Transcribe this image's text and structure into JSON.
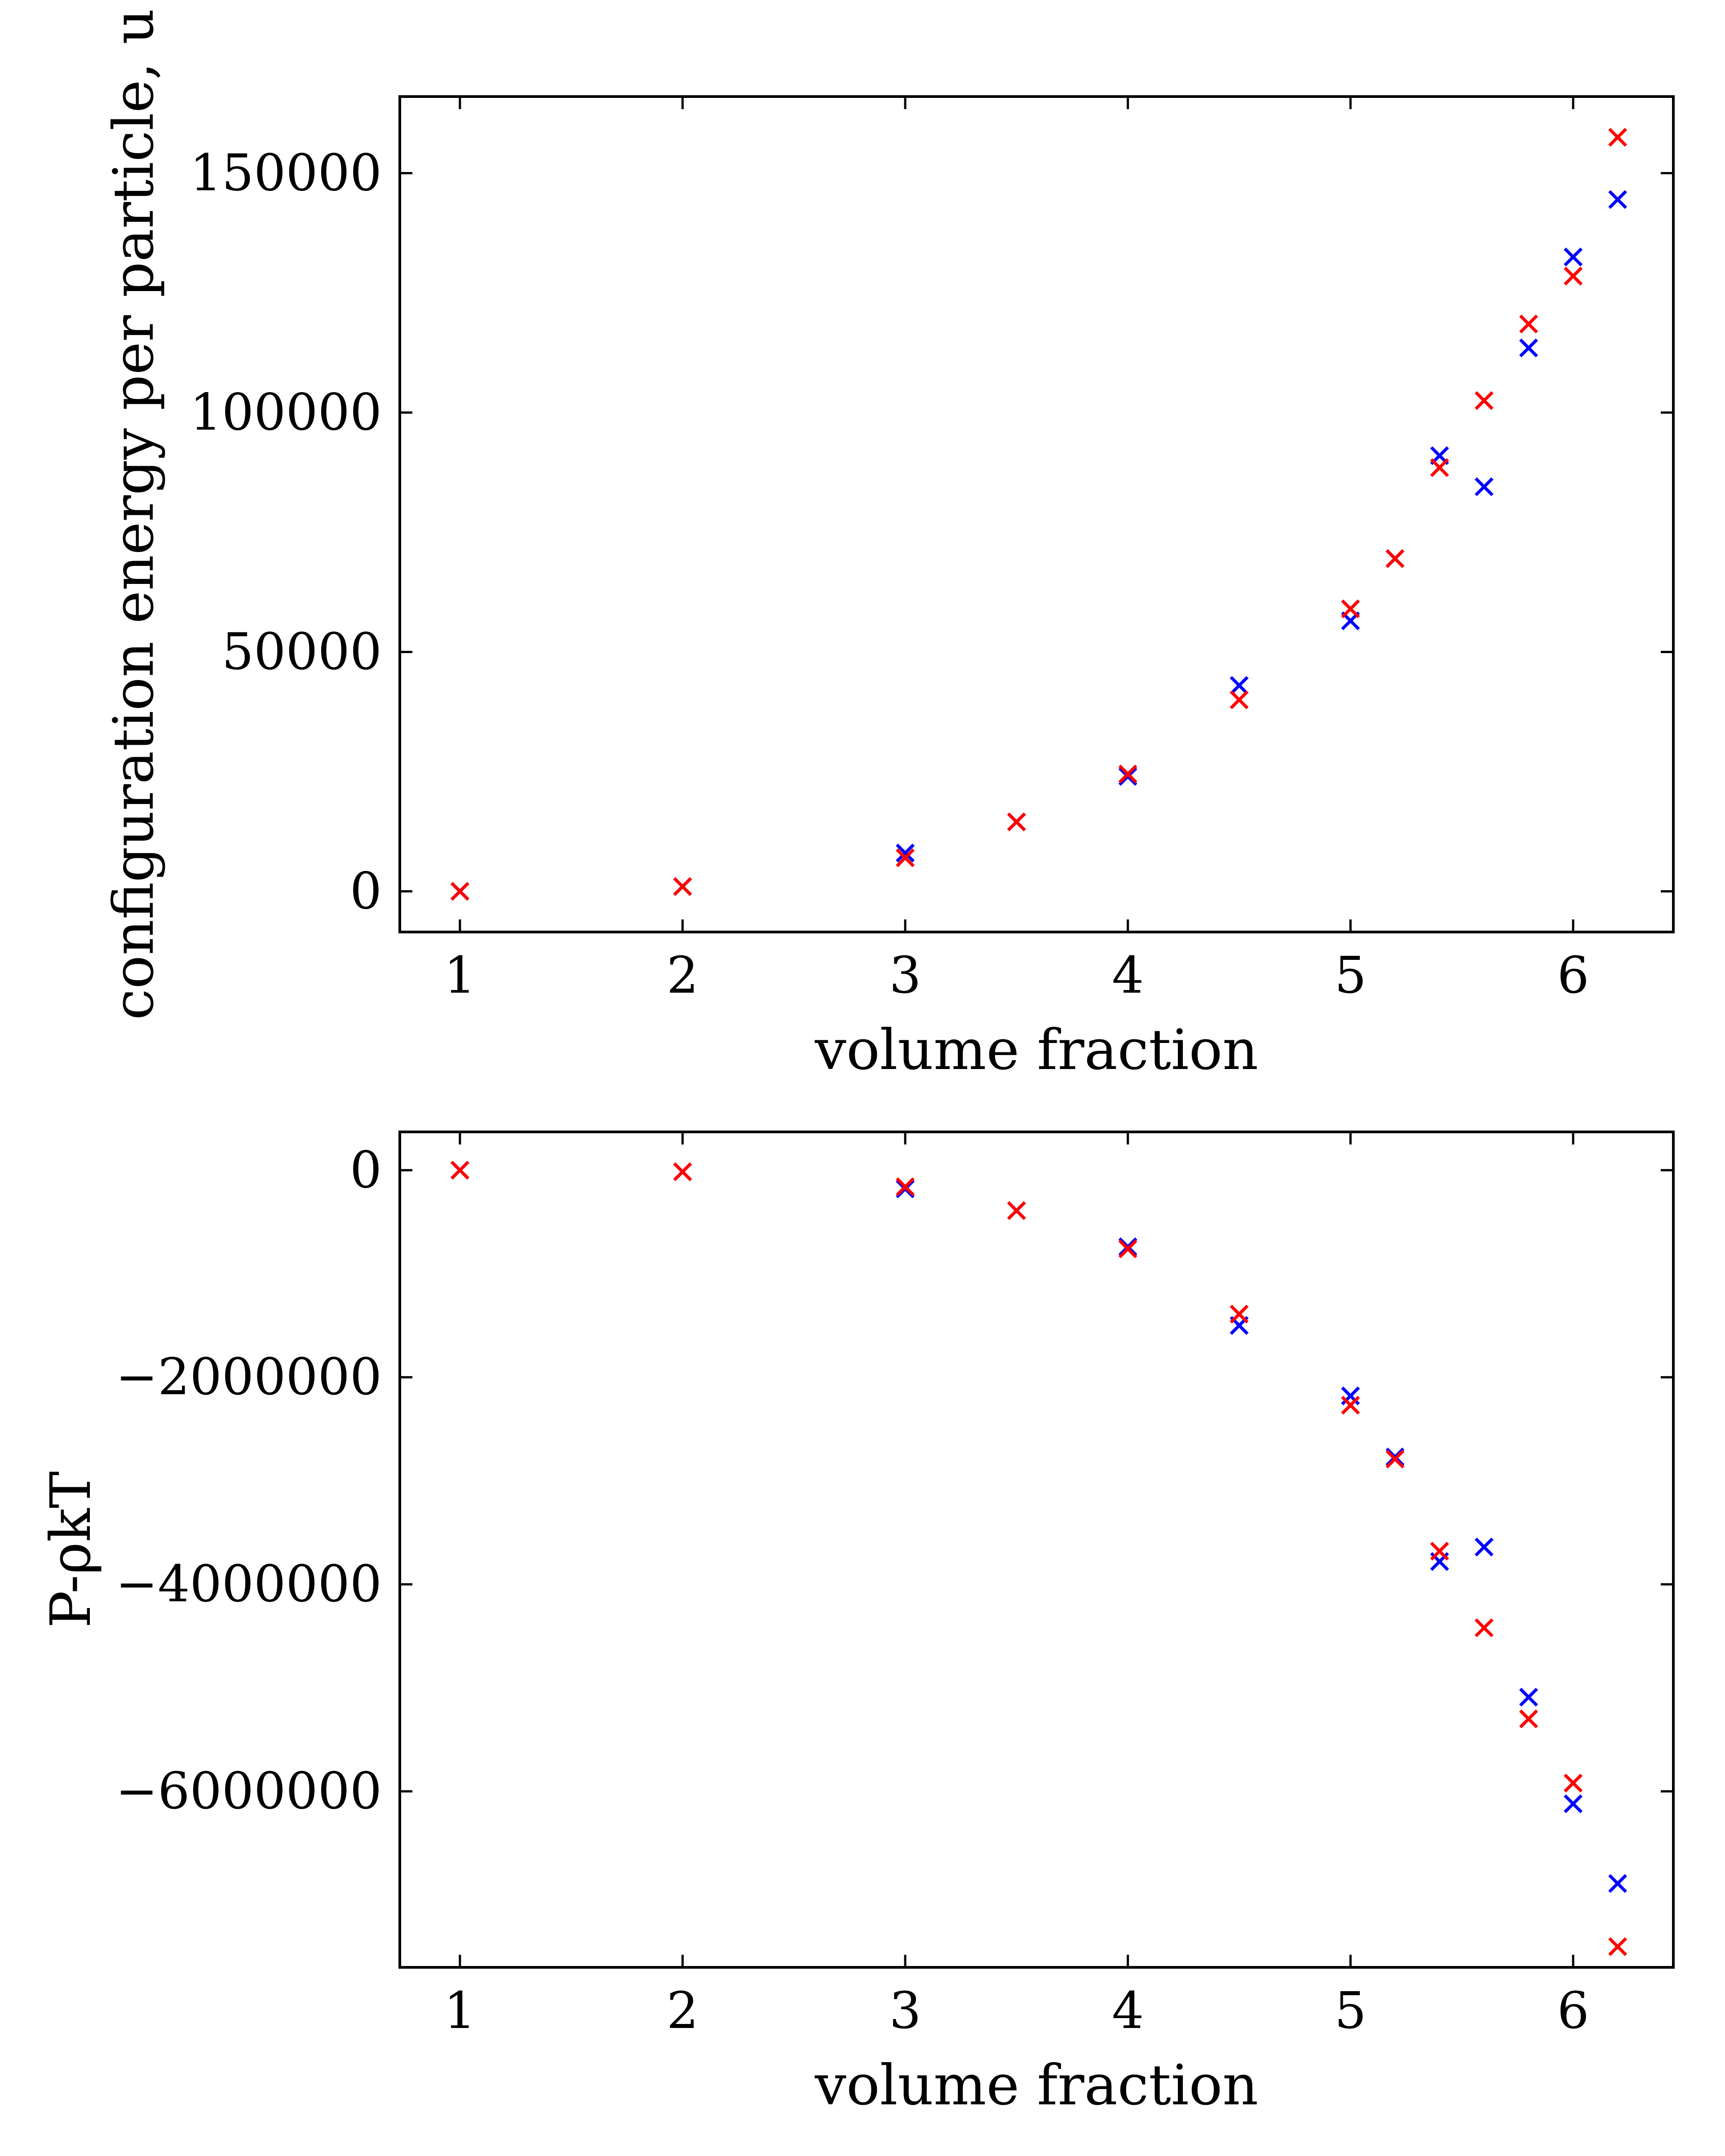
{
  "chart_data": [
    {
      "type": "scatter",
      "xlabel": "volume fraction",
      "ylabel": "configuration energy per particle, u",
      "xlim": [
        0.73,
        6.45
      ],
      "ylim": [
        -8500,
        166000
      ],
      "xticks": [
        1,
        2,
        3,
        4,
        5,
        6
      ],
      "yticks": [
        0,
        50000,
        100000,
        150000
      ],
      "ytick_labels": [
        "0",
        "50000",
        "100000",
        "150000"
      ],
      "grid": false,
      "legend": "none",
      "marker": "x",
      "series": [
        {
          "color": "#0000ff",
          "points": [
            [
              1,
              0
            ],
            [
              2,
              1000
            ],
            [
              3,
              8000
            ],
            [
              3.5,
              14500
            ],
            [
              4,
              24000
            ],
            [
              4.5,
              43000
            ],
            [
              5,
              56500
            ],
            [
              5.2,
              69500
            ],
            [
              5.4,
              91000
            ],
            [
              5.6,
              84500
            ],
            [
              5.8,
              113500
            ],
            [
              6.0,
              132500
            ],
            [
              6.2,
              144500
            ]
          ]
        },
        {
          "color": "#ff0000",
          "points": [
            [
              1,
              0
            ],
            [
              2,
              1000
            ],
            [
              3,
              7000
            ],
            [
              3.5,
              14500
            ],
            [
              4,
              24500
            ],
            [
              4.5,
              40000
            ],
            [
              5,
              59000
            ],
            [
              5.2,
              69500
            ],
            [
              5.4,
              88500
            ],
            [
              5.6,
              102500
            ],
            [
              5.8,
              118500
            ],
            [
              6.0,
              128500
            ],
            [
              6.2,
              157500
            ]
          ]
        }
      ]
    },
    {
      "type": "scatter",
      "xlabel": "volume fraction",
      "ylabel": "P-ρkT",
      "xlim": [
        0.73,
        6.45
      ],
      "ylim": [
        -7700000,
        370000
      ],
      "xticks": [
        1,
        2,
        3,
        4,
        5,
        6
      ],
      "yticks": [
        0,
        -2000000,
        -4000000,
        -6000000
      ],
      "ytick_labels": [
        "0",
        "−2000000",
        "−4000000",
        "−6000000"
      ],
      "grid": false,
      "legend": "none",
      "marker": "x",
      "series": [
        {
          "color": "#0000ff",
          "points": [
            [
              1,
              0
            ],
            [
              2,
              -15000
            ],
            [
              3,
              -180000
            ],
            [
              3.5,
              -390000
            ],
            [
              4,
              -740000
            ],
            [
              4.5,
              -1500000
            ],
            [
              5,
              -2180000
            ],
            [
              5.2,
              -2770000
            ],
            [
              5.4,
              -3780000
            ],
            [
              5.6,
              -3640000
            ],
            [
              5.8,
              -5090000
            ],
            [
              6.0,
              -6120000
            ],
            [
              6.2,
              -6890000
            ]
          ]
        },
        {
          "color": "#ff0000",
          "points": [
            [
              1,
              0
            ],
            [
              2,
              -15000
            ],
            [
              3,
              -160000
            ],
            [
              3.5,
              -390000
            ],
            [
              4,
              -760000
            ],
            [
              4.5,
              -1390000
            ],
            [
              5,
              -2270000
            ],
            [
              5.2,
              -2790000
            ],
            [
              5.4,
              -3680000
            ],
            [
              5.6,
              -4420000
            ],
            [
              5.8,
              -5300000
            ],
            [
              6.0,
              -5920000
            ],
            [
              6.2,
              -7500000
            ]
          ]
        }
      ]
    }
  ]
}
